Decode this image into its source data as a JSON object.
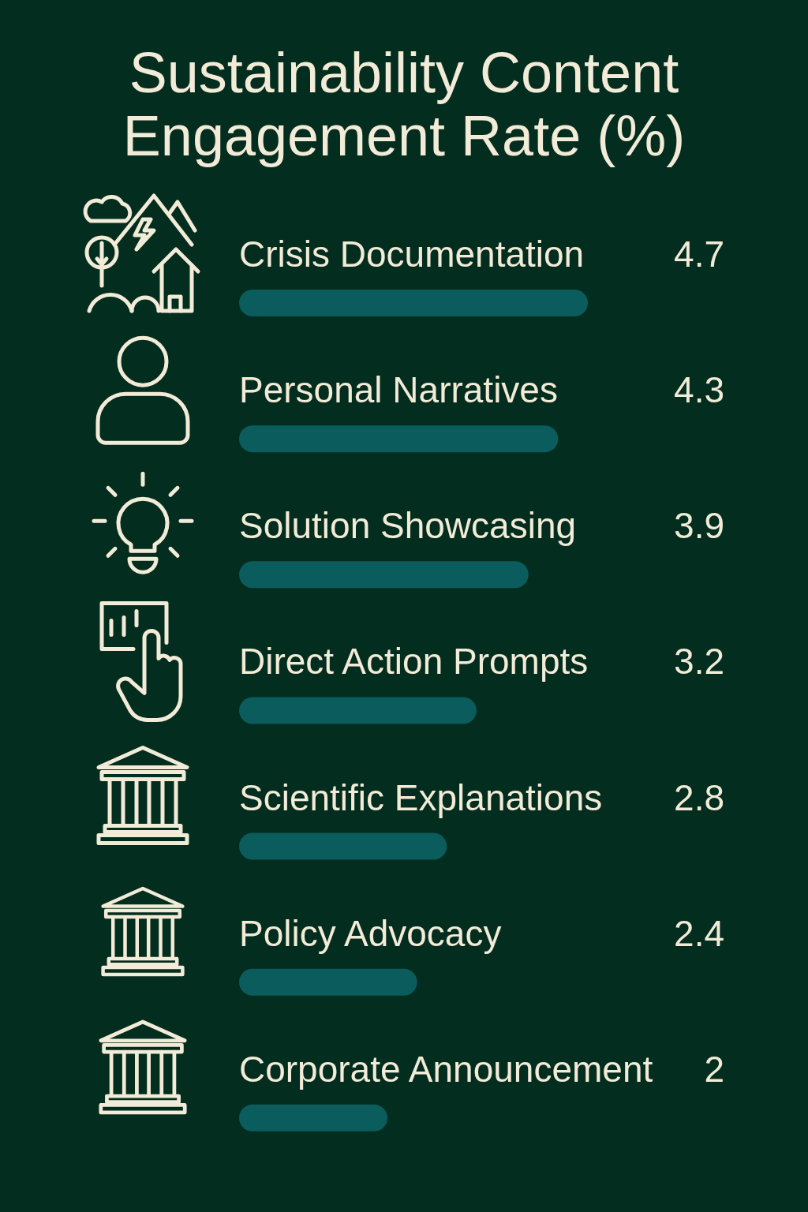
{
  "chart_data": {
    "type": "bar",
    "orientation": "horizontal",
    "title": "Sustainability Content Engagement Rate (%)",
    "categories": [
      "Crisis Documentation",
      "Personal Narratives",
      "Solution Showcasing",
      "Direct Action Prompts",
      "Scientific Explanations",
      "Policy Advocacy",
      "Corporate Announcement"
    ],
    "values": [
      4.7,
      4.3,
      3.9,
      3.2,
      2.8,
      2.4,
      2
    ],
    "color": "#0b5c5c",
    "data_labels": true
  }
}
